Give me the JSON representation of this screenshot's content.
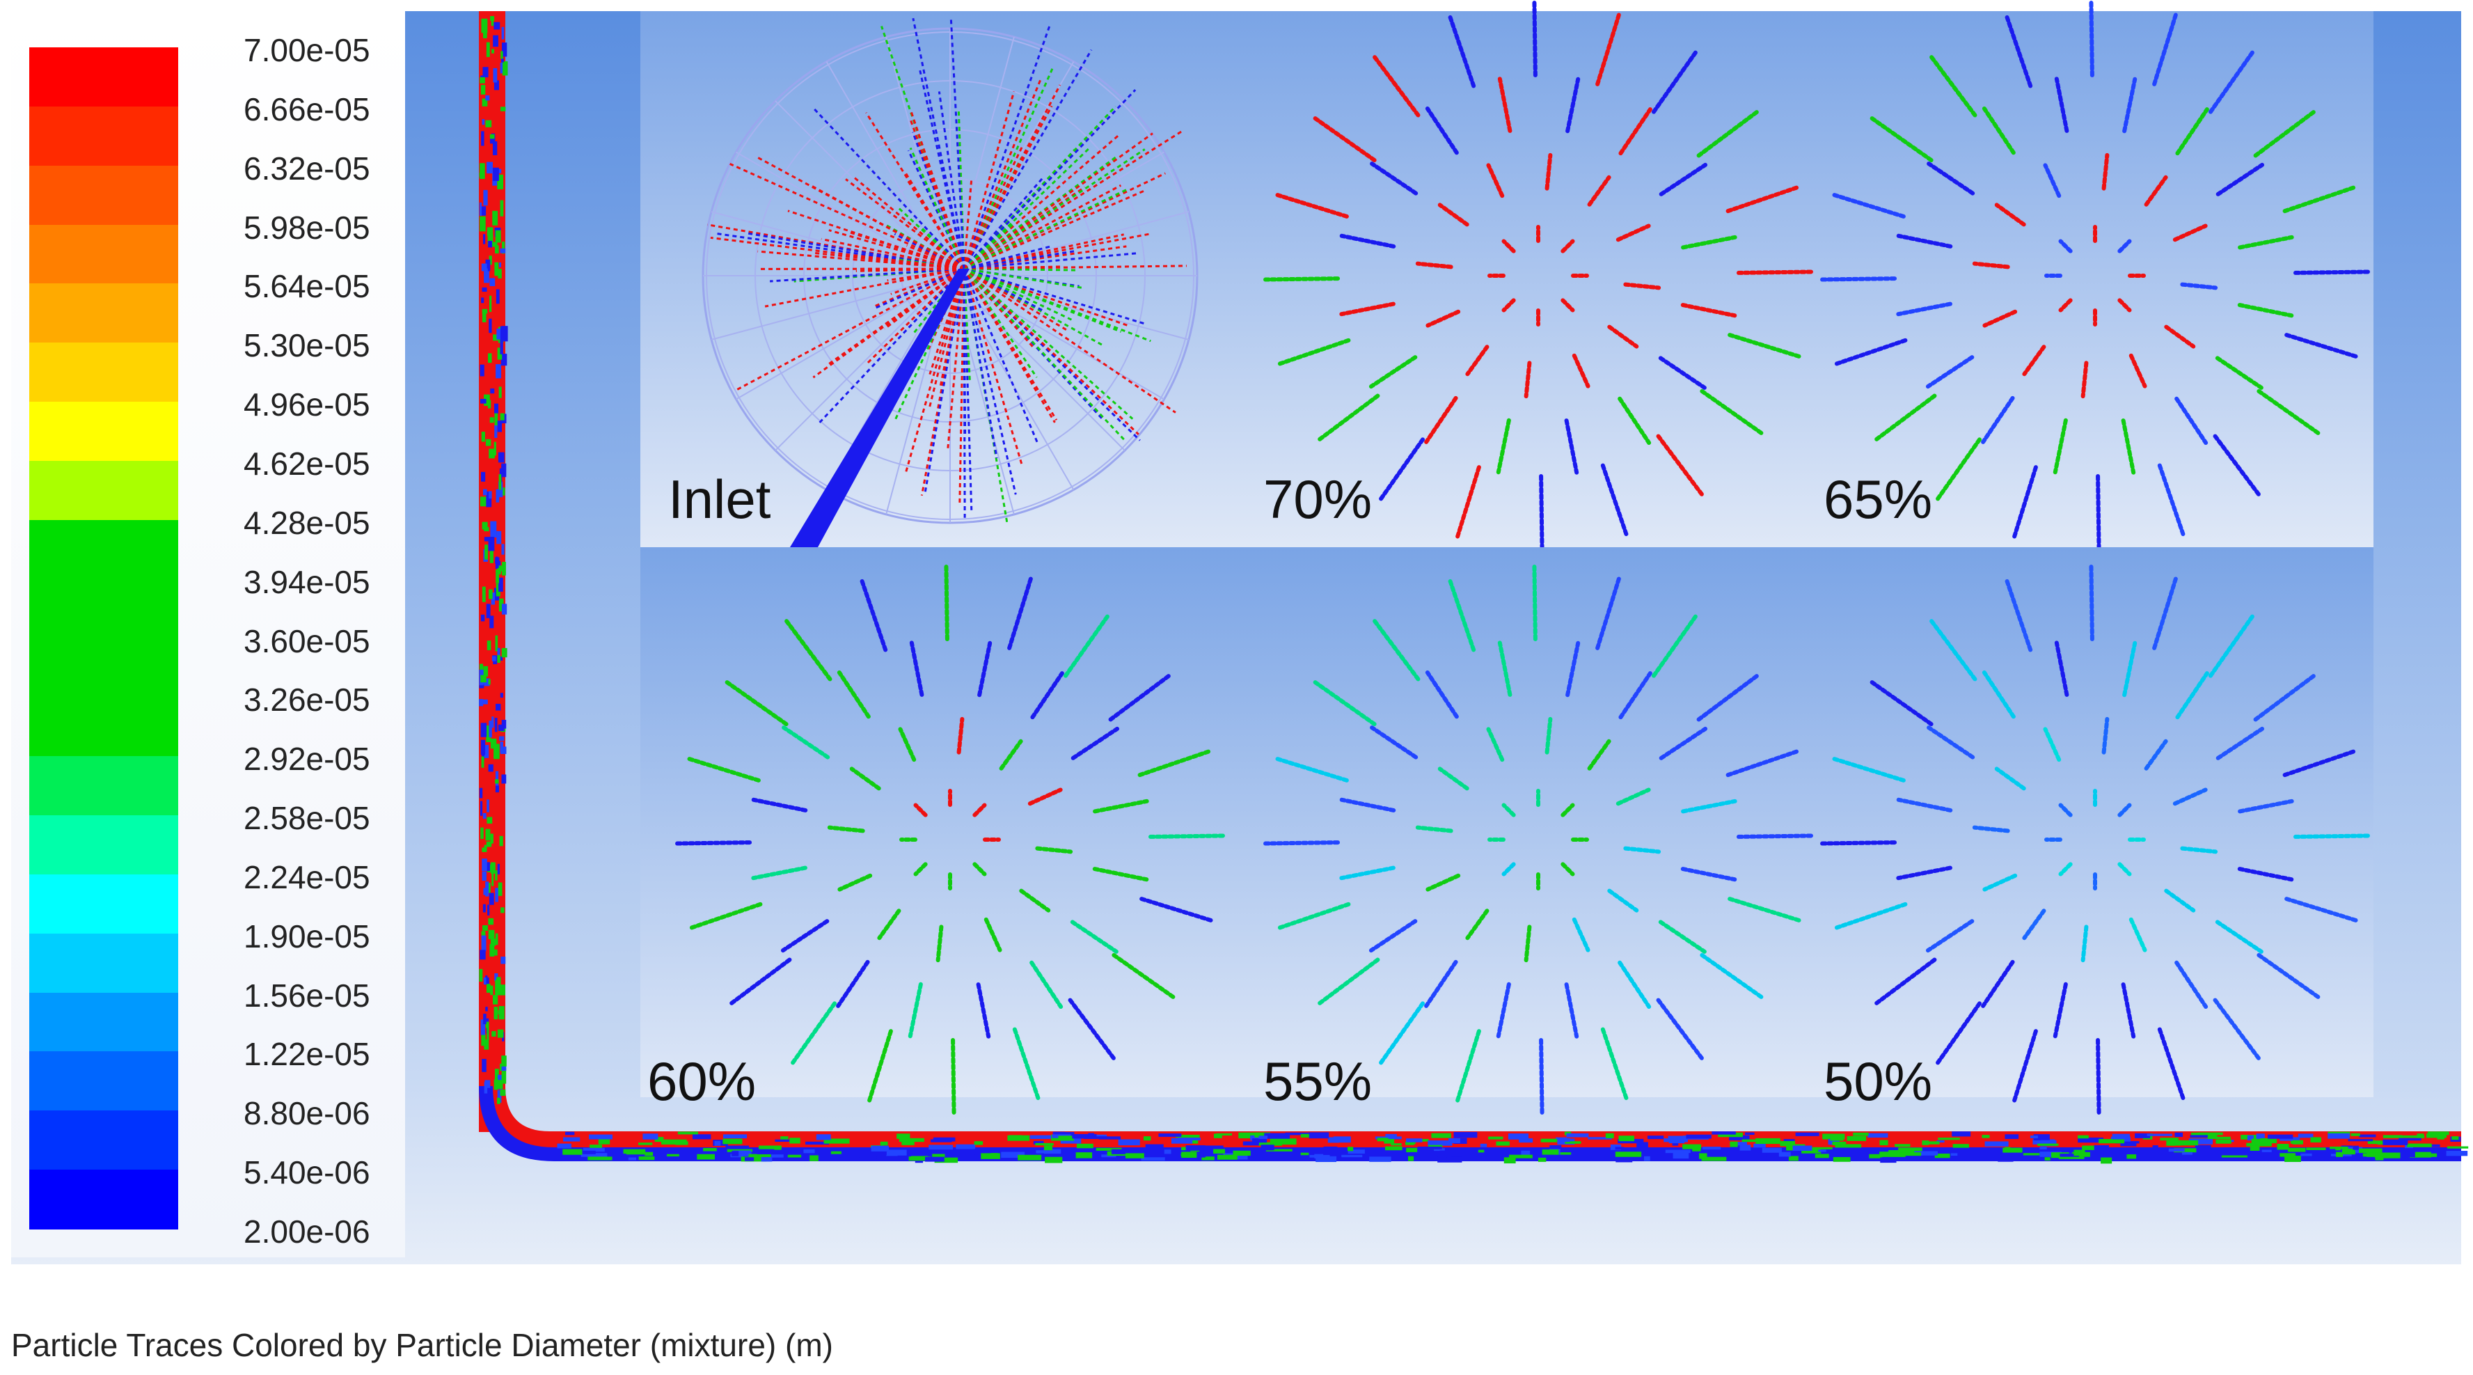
{
  "legend": {
    "ticks": [
      "7.00e-05",
      "6.66e-05",
      "6.32e-05",
      "5.98e-05",
      "5.64e-05",
      "5.30e-05",
      "4.96e-05",
      "4.62e-05",
      "4.28e-05",
      "3.94e-05",
      "3.60e-05",
      "3.26e-05",
      "2.92e-05",
      "2.58e-05",
      "2.24e-05",
      "1.90e-05",
      "1.56e-05",
      "1.22e-05",
      "8.80e-06",
      "5.40e-06",
      "2.00e-06"
    ],
    "colors": [
      "#ff0000",
      "#ff2a00",
      "#ff5500",
      "#ff7f00",
      "#ffaa00",
      "#ffd400",
      "#ffff00",
      "#aaff00",
      "#00dd00",
      "#00dd00",
      "#00dd00",
      "#00dd00",
      "#00ee55",
      "#00ffaa",
      "#00ffff",
      "#00cfff",
      "#0099ff",
      "#0066ff",
      "#0033ff",
      "#0000ff"
    ]
  },
  "panels": [
    {
      "label": "Inlet",
      "type": "inlet"
    },
    {
      "label": "70%",
      "scheme": "red"
    },
    {
      "label": "65%",
      "scheme": "mixed"
    },
    {
      "label": "60%",
      "scheme": "green"
    },
    {
      "label": "55%",
      "scheme": "cyan-green"
    },
    {
      "label": "50%",
      "scheme": "cyan"
    }
  ],
  "caption": "Particle Traces Colored by Particle Diameter (mixture)  (m)"
}
